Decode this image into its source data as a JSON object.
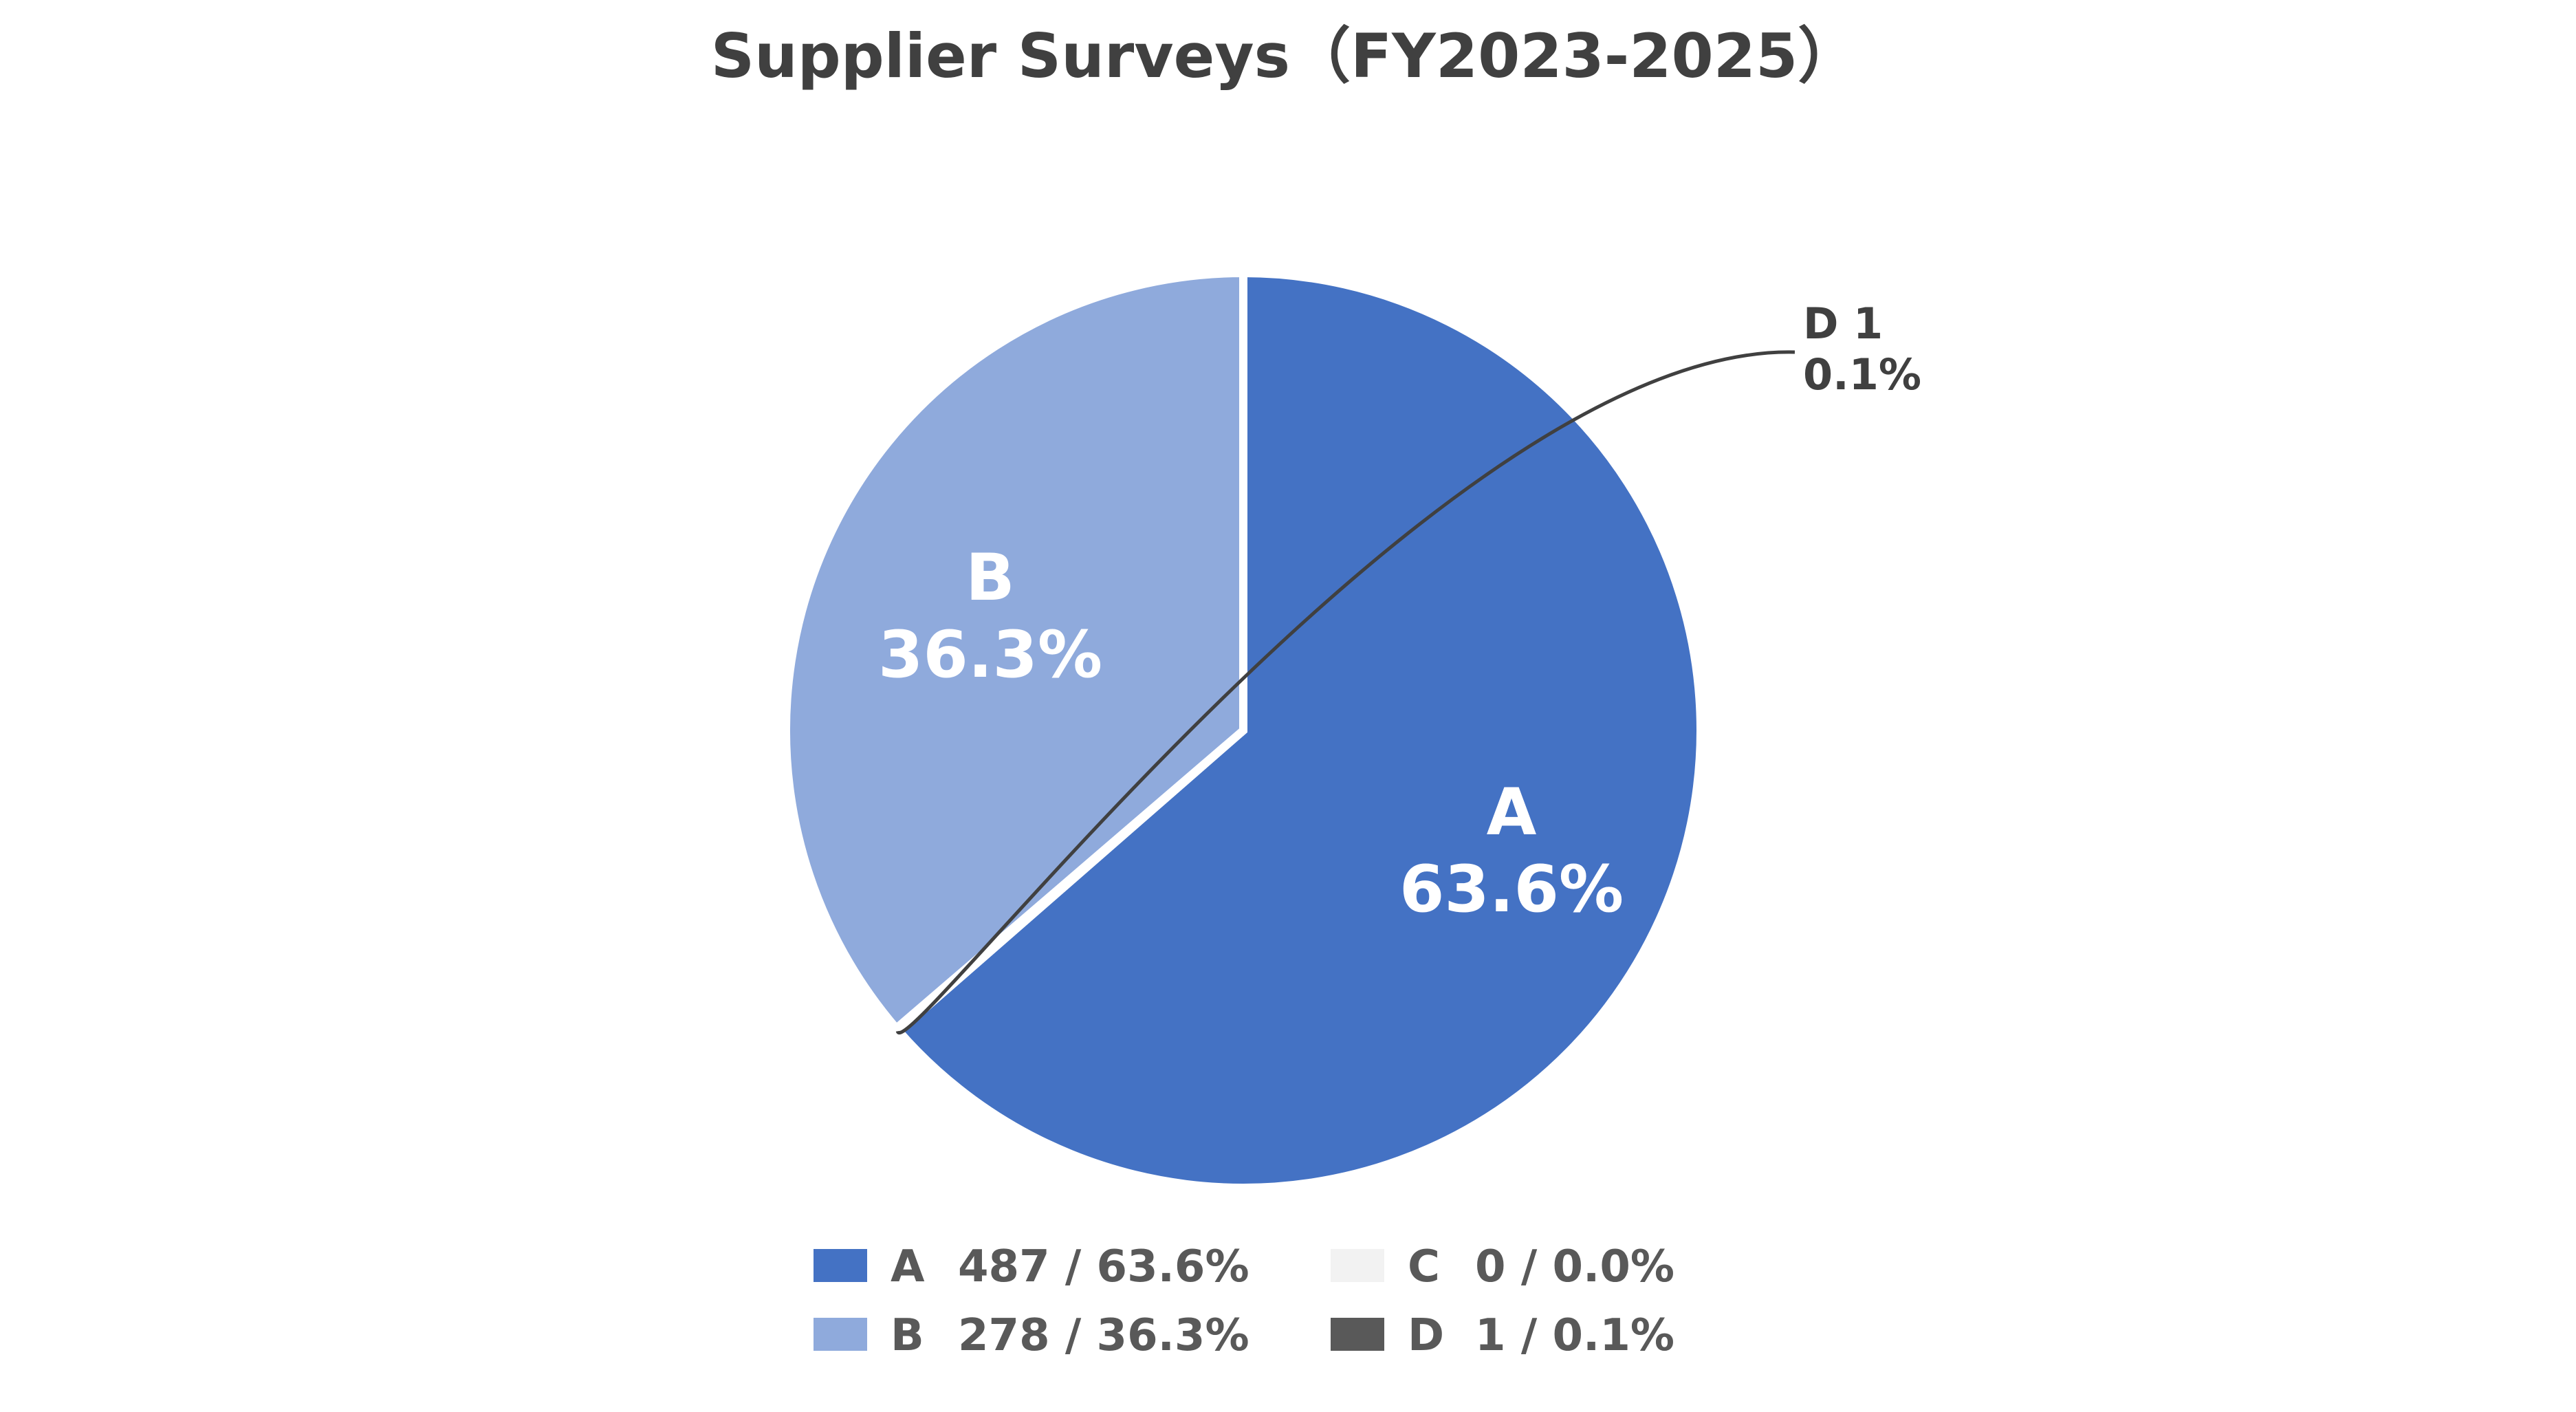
{
  "chart_data": {
    "type": "pie",
    "title": "Supplier Surveys（FY2023-2025）",
    "slices": [
      {
        "category": "A",
        "count": 487,
        "percent": 63.6,
        "percent_text": "63.6%",
        "color": "#4472C4",
        "label_color": "#FFFFFF"
      },
      {
        "category": "C",
        "count": 0,
        "percent": 0.0,
        "percent_text": "0.0%",
        "color": "#F2F2F2",
        "label_color": "#404040"
      },
      {
        "category": "D",
        "count": 1,
        "percent": 0.1,
        "percent_text": "0.1%",
        "color": "#595959",
        "label_color": "#404040"
      },
      {
        "category": "B",
        "count": 278,
        "percent": 36.3,
        "percent_text": "36.3%",
        "color": "#8FAADC",
        "label_color": "#FFFFFF"
      }
    ],
    "data_labels": {
      "A": {
        "line1": "A",
        "line2": "63.6%"
      },
      "B": {
        "line1": "B",
        "line2": "36.3%"
      },
      "D": {
        "line1": "D 1",
        "line2": "0.1%"
      }
    },
    "legend": [
      {
        "category": "A",
        "text": "487 / 63.6%",
        "color": "#4472C4"
      },
      {
        "category": "B",
        "text": "278 / 36.3%",
        "color": "#8FAADC"
      },
      {
        "category": "C",
        "text": "0 / 0.0%",
        "color": "#F2F2F2"
      },
      {
        "category": "D",
        "text": "1 / 0.1%",
        "color": "#595959"
      }
    ],
    "legend_position": "bottom",
    "leader_line_color": "#404040"
  }
}
